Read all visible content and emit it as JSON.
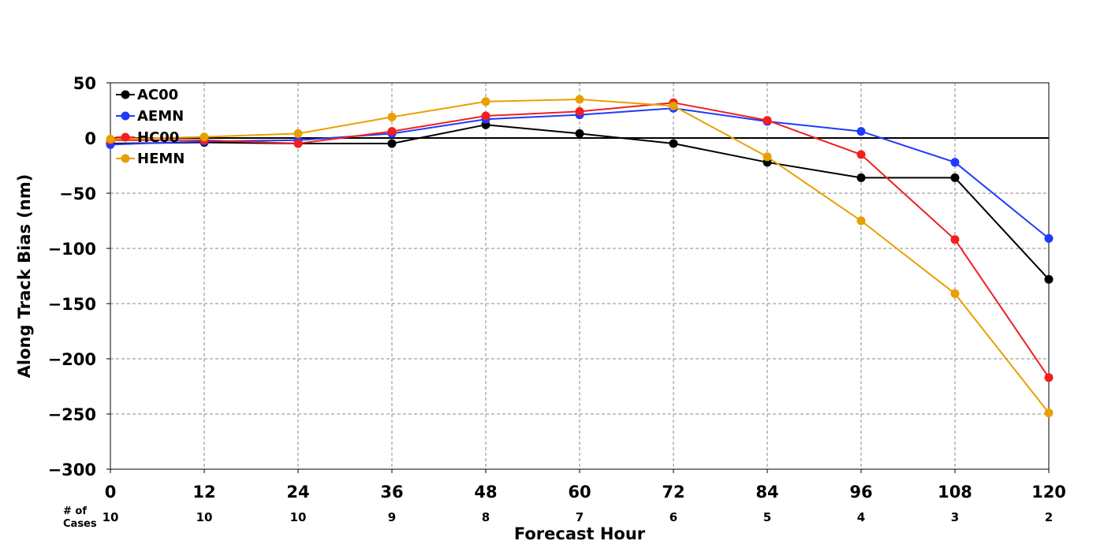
{
  "chart_data": {
    "type": "line",
    "xlabel": "Forecast Hour",
    "ylabel": "Along Track Bias (nm)",
    "x": [
      0,
      12,
      24,
      36,
      48,
      60,
      72,
      84,
      96,
      108,
      120
    ],
    "xlim": [
      0,
      120
    ],
    "ylim": [
      -300,
      50
    ],
    "yticks": [
      50,
      0,
      -50,
      -100,
      -150,
      -200,
      -250,
      -300
    ],
    "ytick_labels": [
      "50",
      "0",
      "−50",
      "−100",
      "−150",
      "−200",
      "−250",
      "−300"
    ],
    "grid": true,
    "zero_line": true,
    "legend_position": "top-left",
    "cases_caption": [
      "# of",
      "Cases"
    ],
    "cases": [
      10,
      10,
      10,
      9,
      8,
      7,
      6,
      5,
      4,
      3,
      2
    ],
    "series": [
      {
        "name": "AC00",
        "color": "#000000",
        "values": [
          -5,
          -4,
          -5,
          -5,
          12,
          4,
          -5,
          -22,
          -36,
          -36,
          -128
        ]
      },
      {
        "name": "AEMN",
        "color": "#1f3bff",
        "values": [
          -6,
          -3,
          -2,
          4,
          17,
          21,
          27,
          15,
          6,
          -22,
          -91
        ]
      },
      {
        "name": "HC00",
        "color": "#f02020",
        "values": [
          -2,
          -2,
          -5,
          6,
          20,
          24,
          32,
          16,
          -15,
          -92,
          -217
        ]
      },
      {
        "name": "HEMN",
        "color": "#e8a000",
        "values": [
          -1,
          1,
          4,
          19,
          33,
          35,
          29,
          -17,
          -75,
          -141,
          -249
        ]
      }
    ]
  }
}
